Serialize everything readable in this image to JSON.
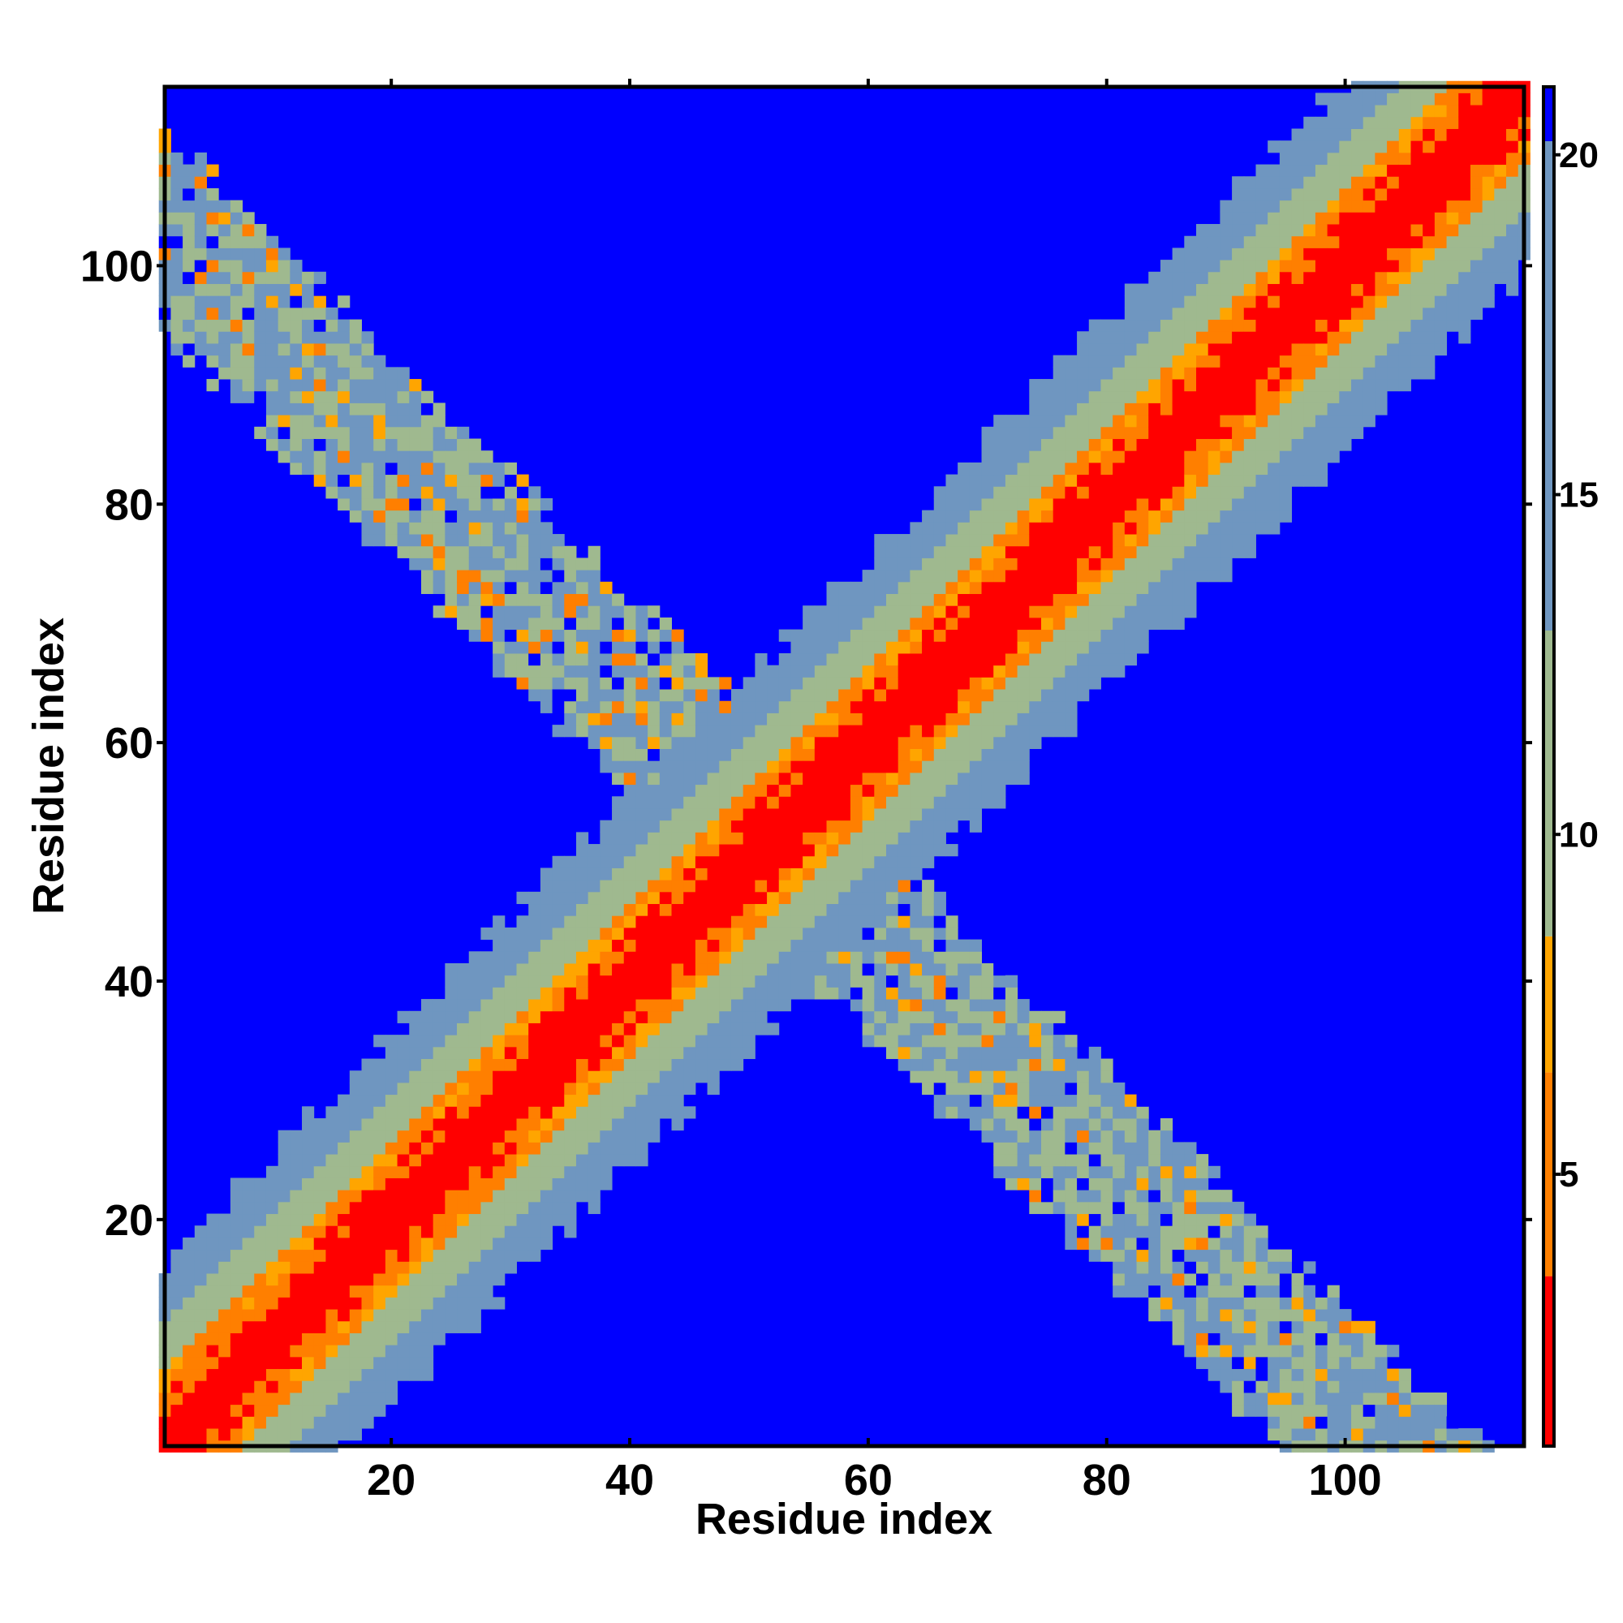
{
  "chart_data": {
    "type": "heatmap",
    "title": "",
    "xlabel": "Residue index",
    "ylabel": "Residue index",
    "n_residues": 115,
    "xlim": [
      1,
      115
    ],
    "ylim": [
      1,
      115
    ],
    "x_ticks": [
      20,
      40,
      60,
      80,
      100
    ],
    "y_ticks": [
      20,
      40,
      60,
      80,
      100
    ],
    "colorbar": {
      "ticks": [
        5,
        10,
        15,
        20
      ],
      "range": [
        1,
        21
      ],
      "colors": [
        "#ff0000",
        "#ff7f00",
        "#ffa500",
        "#9fb98f",
        "#6f96c0",
        "#0000ff"
      ]
    },
    "grid": false,
    "features": [
      {
        "name": "main-diagonal",
        "from": [
          1,
          1
        ],
        "to": [
          115,
          115
        ],
        "core_value": 1,
        "halfwidth_residues": 16
      },
      {
        "name": "anti-diagonal",
        "from": [
          1,
          103
        ],
        "to": [
          103,
          1
        ],
        "core_value": 8,
        "halfwidth_residues": 10
      }
    ]
  }
}
